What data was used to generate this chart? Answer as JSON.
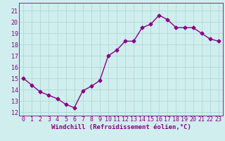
{
  "x": [
    0,
    1,
    2,
    3,
    4,
    5,
    6,
    7,
    8,
    9,
    10,
    11,
    12,
    13,
    14,
    15,
    16,
    17,
    18,
    19,
    20,
    21,
    22,
    23
  ],
  "y": [
    15.0,
    14.4,
    13.8,
    13.5,
    13.2,
    12.7,
    12.4,
    13.9,
    14.3,
    14.8,
    17.0,
    17.5,
    18.3,
    18.3,
    19.5,
    19.8,
    20.6,
    20.2,
    19.5,
    19.5,
    19.5,
    19.0,
    18.5,
    18.3
  ],
  "color": "#880088",
  "bg_color": "#d0eeee",
  "grid_color": "#b0d8d8",
  "xlim": [
    -0.5,
    23.5
  ],
  "ylim": [
    11.7,
    21.7
  ],
  "yticks": [
    12,
    13,
    14,
    15,
    16,
    17,
    18,
    19,
    20,
    21
  ],
  "xticks": [
    0,
    1,
    2,
    3,
    4,
    5,
    6,
    7,
    8,
    9,
    10,
    11,
    12,
    13,
    14,
    15,
    16,
    17,
    18,
    19,
    20,
    21,
    22,
    23
  ],
  "xlabel": "Windchill (Refroidissement éolien,°C)",
  "marker": "D",
  "markersize": 2.5,
  "linewidth": 1.0,
  "xlabel_fontsize": 6.5,
  "tick_fontsize": 6.0
}
